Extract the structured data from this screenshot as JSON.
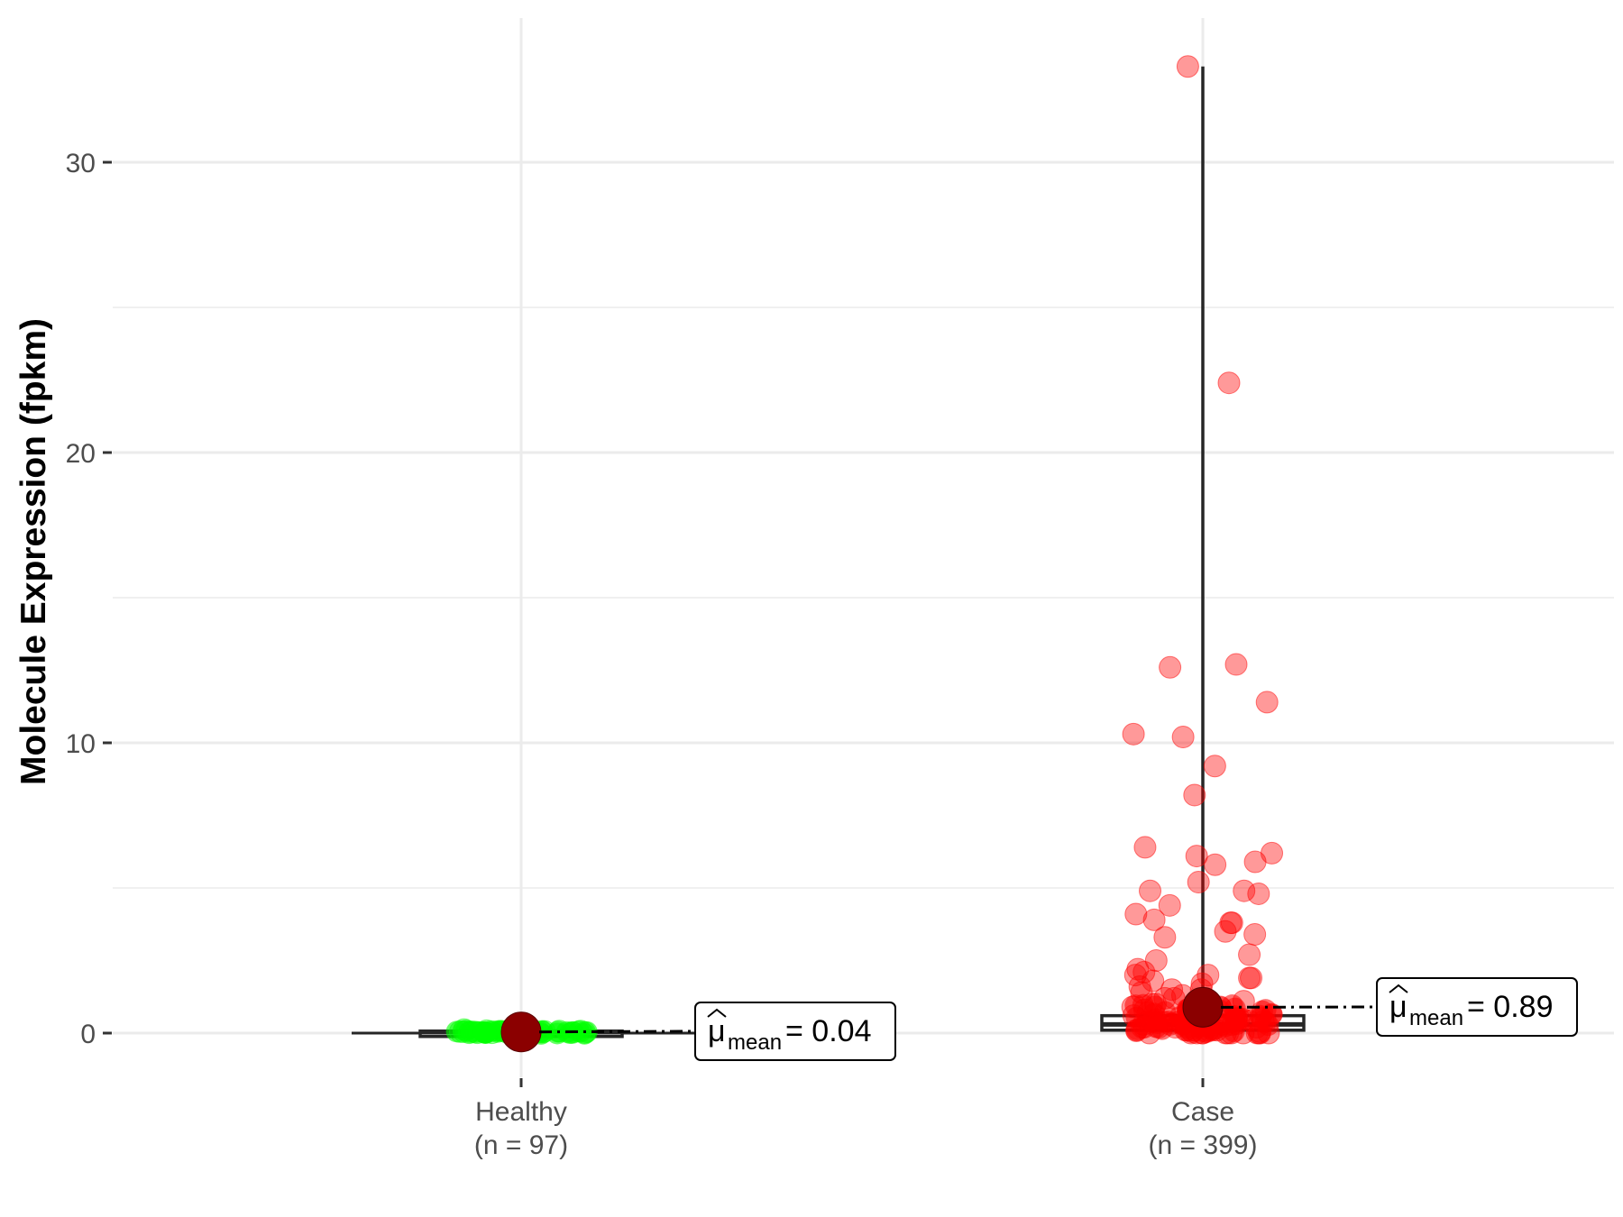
{
  "chart_data": {
    "type": "scatter",
    "subtype": "box-violin-jitter",
    "ylabel": "Molecule Expression (fpkm)",
    "xlabel": "",
    "ylim": [
      -1.5,
      34.5
    ],
    "yticks": [
      0,
      10,
      20,
      30
    ],
    "ytick_labels": [
      "0",
      "10",
      "20",
      "30"
    ],
    "grid": true,
    "groups": [
      {
        "key": "healthy",
        "name": "Healthy",
        "n_label": "(n = 97)",
        "color": "#00ff00",
        "box": {
          "q1": 0.01,
          "median": 0.03,
          "q3": 0.07,
          "whisker_low": 0.0,
          "whisker_high": 0.12
        },
        "mean": 0.04,
        "mean_label_prefix": "μ",
        "mean_label_sub": "mean",
        "mean_label_value": "= 0.04",
        "points": [
          0.02,
          0.05,
          0.01,
          0.08,
          0.03,
          0.06,
          0.12,
          0.02,
          0.04,
          0.09,
          0.01,
          0.07,
          0.03,
          0.05,
          0.1,
          0.02,
          0.06,
          0.04,
          0.08,
          0.03,
          0.01,
          0.05,
          0.07,
          0.02,
          0.04
        ]
      },
      {
        "key": "case",
        "name": "Case",
        "n_label": "(n = 399)",
        "color": "#ff0000",
        "box": {
          "q1": 0.1,
          "median": 0.3,
          "q3": 0.6,
          "whisker_low": 0.0,
          "whisker_high": 33.3
        },
        "mean": 0.89,
        "mean_label_prefix": "μ",
        "mean_label_sub": "mean",
        "mean_label_value": "= 0.89",
        "points": [
          33.3,
          22.4,
          12.7,
          12.6,
          11.4,
          10.3,
          10.2,
          9.2,
          8.2,
          6.4,
          6.2,
          6.1,
          5.9,
          5.8,
          5.2,
          4.9,
          4.9,
          4.8,
          4.4,
          4.1,
          3.9,
          3.8,
          3.8,
          3.5,
          3.4,
          3.3,
          2.7,
          2.5,
          2.2,
          2.1,
          2.0,
          2.0,
          1.9,
          1.9,
          1.8,
          1.7,
          1.6,
          1.5,
          1.5,
          1.4,
          1.3,
          1.2,
          1.2,
          1.1,
          1.0,
          1.0,
          0.9,
          0.9,
          0.8,
          0.8,
          0.7,
          0.7,
          0.6,
          0.6,
          0.5,
          0.5,
          0.5,
          0.4,
          0.4,
          0.4,
          0.3,
          0.3,
          0.3,
          0.3,
          0.2,
          0.2,
          0.2,
          0.2,
          0.2,
          0.1,
          0.1,
          0.1,
          0.1,
          0.1,
          0.05,
          0.05,
          0.05,
          0.0,
          0.0,
          0.0,
          0.0,
          0.0,
          0.0,
          0.0,
          0.0,
          0.0,
          0.0,
          0.0,
          0.0,
          0.0
        ]
      }
    ]
  }
}
